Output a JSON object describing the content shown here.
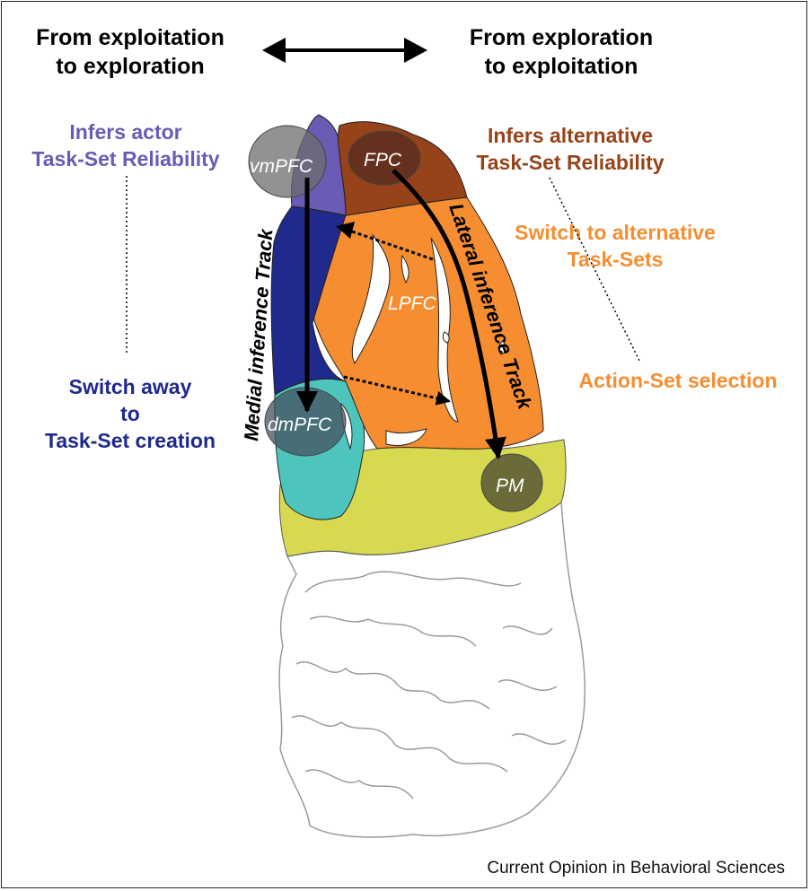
{
  "header": {
    "left_line1": "From exploitation",
    "left_line2": "to exploration",
    "right_line1": "From exploration",
    "right_line2": "to exploitation"
  },
  "left_labels": {
    "top_line1": "Infers actor",
    "top_line2": "Task-Set Reliability",
    "bottom_line1": "Switch away",
    "bottom_line2": "to",
    "bottom_line3": "Task-Set creation"
  },
  "right_labels": {
    "top_line1": "Infers alternative",
    "top_line2": "Task-Set Reliability",
    "mid_line1": "Switch to alternative",
    "mid_line2": "Task-Sets",
    "bottom": "Action-Set selection"
  },
  "regions": {
    "vmpfc": "vmPFC",
    "fpc": "FPC",
    "lpfc": "LPFC",
    "dmpfc": "dmPFC",
    "pm": "PM"
  },
  "tracks": {
    "medial": "Medial inference Track",
    "lateral": "Lateral inference Track"
  },
  "credit": "Current Opinion in Behavioral Sciences",
  "colors": {
    "purple": "#6a5bb5",
    "navy": "#1f2a8c",
    "brown": "#97431a",
    "orange": "#f68e31",
    "teal": "#4ec5bc",
    "yellow": "#d7da50",
    "outline": "#999999"
  }
}
